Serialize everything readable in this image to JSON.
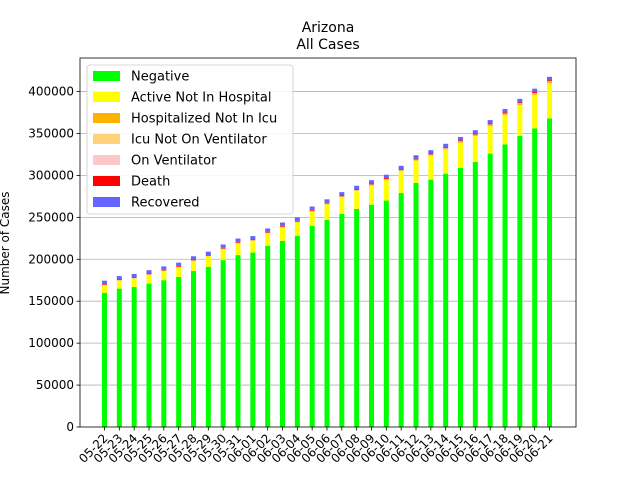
{
  "chart_data": {
    "type": "bar",
    "stacked": true,
    "title": "Arizona",
    "subtitle": "All Cases",
    "xlabel": "",
    "ylabel": "Number of Cases",
    "ylim": [
      0,
      440000
    ],
    "yticks": [
      0,
      50000,
      100000,
      150000,
      200000,
      250000,
      300000,
      350000,
      400000
    ],
    "grid": "y",
    "legend_position": "top-left",
    "categories": [
      "05-22",
      "05-23",
      "05-24",
      "05-25",
      "05-26",
      "05-27",
      "05-28",
      "05-29",
      "05-30",
      "05-31",
      "06-01",
      "06-02",
      "06-03",
      "06-04",
      "06-05",
      "06-06",
      "06-07",
      "06-08",
      "06-09",
      "06-10",
      "06-11",
      "06-12",
      "06-13",
      "06-14",
      "06-15",
      "06-16",
      "06-17",
      "06-18",
      "06-19",
      "06-20",
      "06-21"
    ],
    "series": [
      {
        "name": "Negative",
        "color": "#00ff00",
        "values": [
          160000,
          165000,
          167000,
          171000,
          175000,
          179000,
          186000,
          191000,
          199000,
          205000,
          208000,
          216000,
          222000,
          228000,
          240000,
          247000,
          254000,
          260000,
          265000,
          270000,
          279000,
          291000,
          295000,
          302000,
          309000,
          316000,
          326000,
          337000,
          347000,
          356000,
          368000
        ]
      },
      {
        "name": "Active Not In Hospital",
        "color": "#ffff00",
        "values": [
          9000,
          9500,
          10000,
          10500,
          11000,
          11500,
          12000,
          12500,
          13000,
          14000,
          14000,
          15000,
          16000,
          16000,
          17000,
          18500,
          20000,
          21500,
          23000,
          24500,
          26000,
          26500,
          28500,
          29000,
          30000,
          31000,
          33000,
          35000,
          37000,
          40000,
          42000
        ]
      },
      {
        "name": "Hospitalized Not In Icu",
        "color": "#ffb300",
        "values": [
          400,
          400,
          400,
          400,
          400,
          400,
          450,
          450,
          450,
          500,
          500,
          500,
          550,
          550,
          600,
          650,
          700,
          750,
          800,
          850,
          900,
          950,
          1000,
          1050,
          1100,
          1150,
          1200,
          1300,
          1400,
          1500,
          1600
        ]
      },
      {
        "name": "Icu Not On Ventilator",
        "color": "#ffd27a",
        "values": [
          100,
          100,
          100,
          100,
          100,
          100,
          100,
          100,
          110,
          110,
          110,
          110,
          120,
          120,
          120,
          130,
          140,
          150,
          160,
          170,
          180,
          190,
          200,
          210,
          220,
          230,
          240,
          250,
          260,
          270,
          280
        ]
      },
      {
        "name": "On Ventilator",
        "color": "#ffc8c8",
        "values": [
          150,
          150,
          150,
          150,
          150,
          150,
          160,
          160,
          170,
          170,
          180,
          180,
          190,
          190,
          200,
          210,
          220,
          230,
          240,
          250,
          260,
          270,
          280,
          290,
          300,
          310,
          320,
          330,
          340,
          350,
          360
        ]
      },
      {
        "name": "Death",
        "color": "#ff0000",
        "values": [
          800,
          810,
          820,
          830,
          840,
          850,
          860,
          870,
          880,
          890,
          900,
          920,
          940,
          960,
          980,
          1000,
          1020,
          1040,
          1060,
          1080,
          1100,
          1120,
          1140,
          1160,
          1180,
          1200,
          1220,
          1240,
          1260,
          1280,
          1300
        ]
      },
      {
        "name": "Recovered",
        "color": "#6464ff",
        "values": [
          4000,
          4000,
          4000,
          4000,
          4000,
          4000,
          4000,
          4000,
          4000,
          4000,
          4000,
          4000,
          4000,
          4000,
          4000,
          4000,
          4000,
          4000,
          4000,
          4000,
          4000,
          4000,
          4000,
          4000,
          4000,
          4000,
          4000,
          4000,
          4000,
          4000,
          4000
        ]
      }
    ]
  }
}
